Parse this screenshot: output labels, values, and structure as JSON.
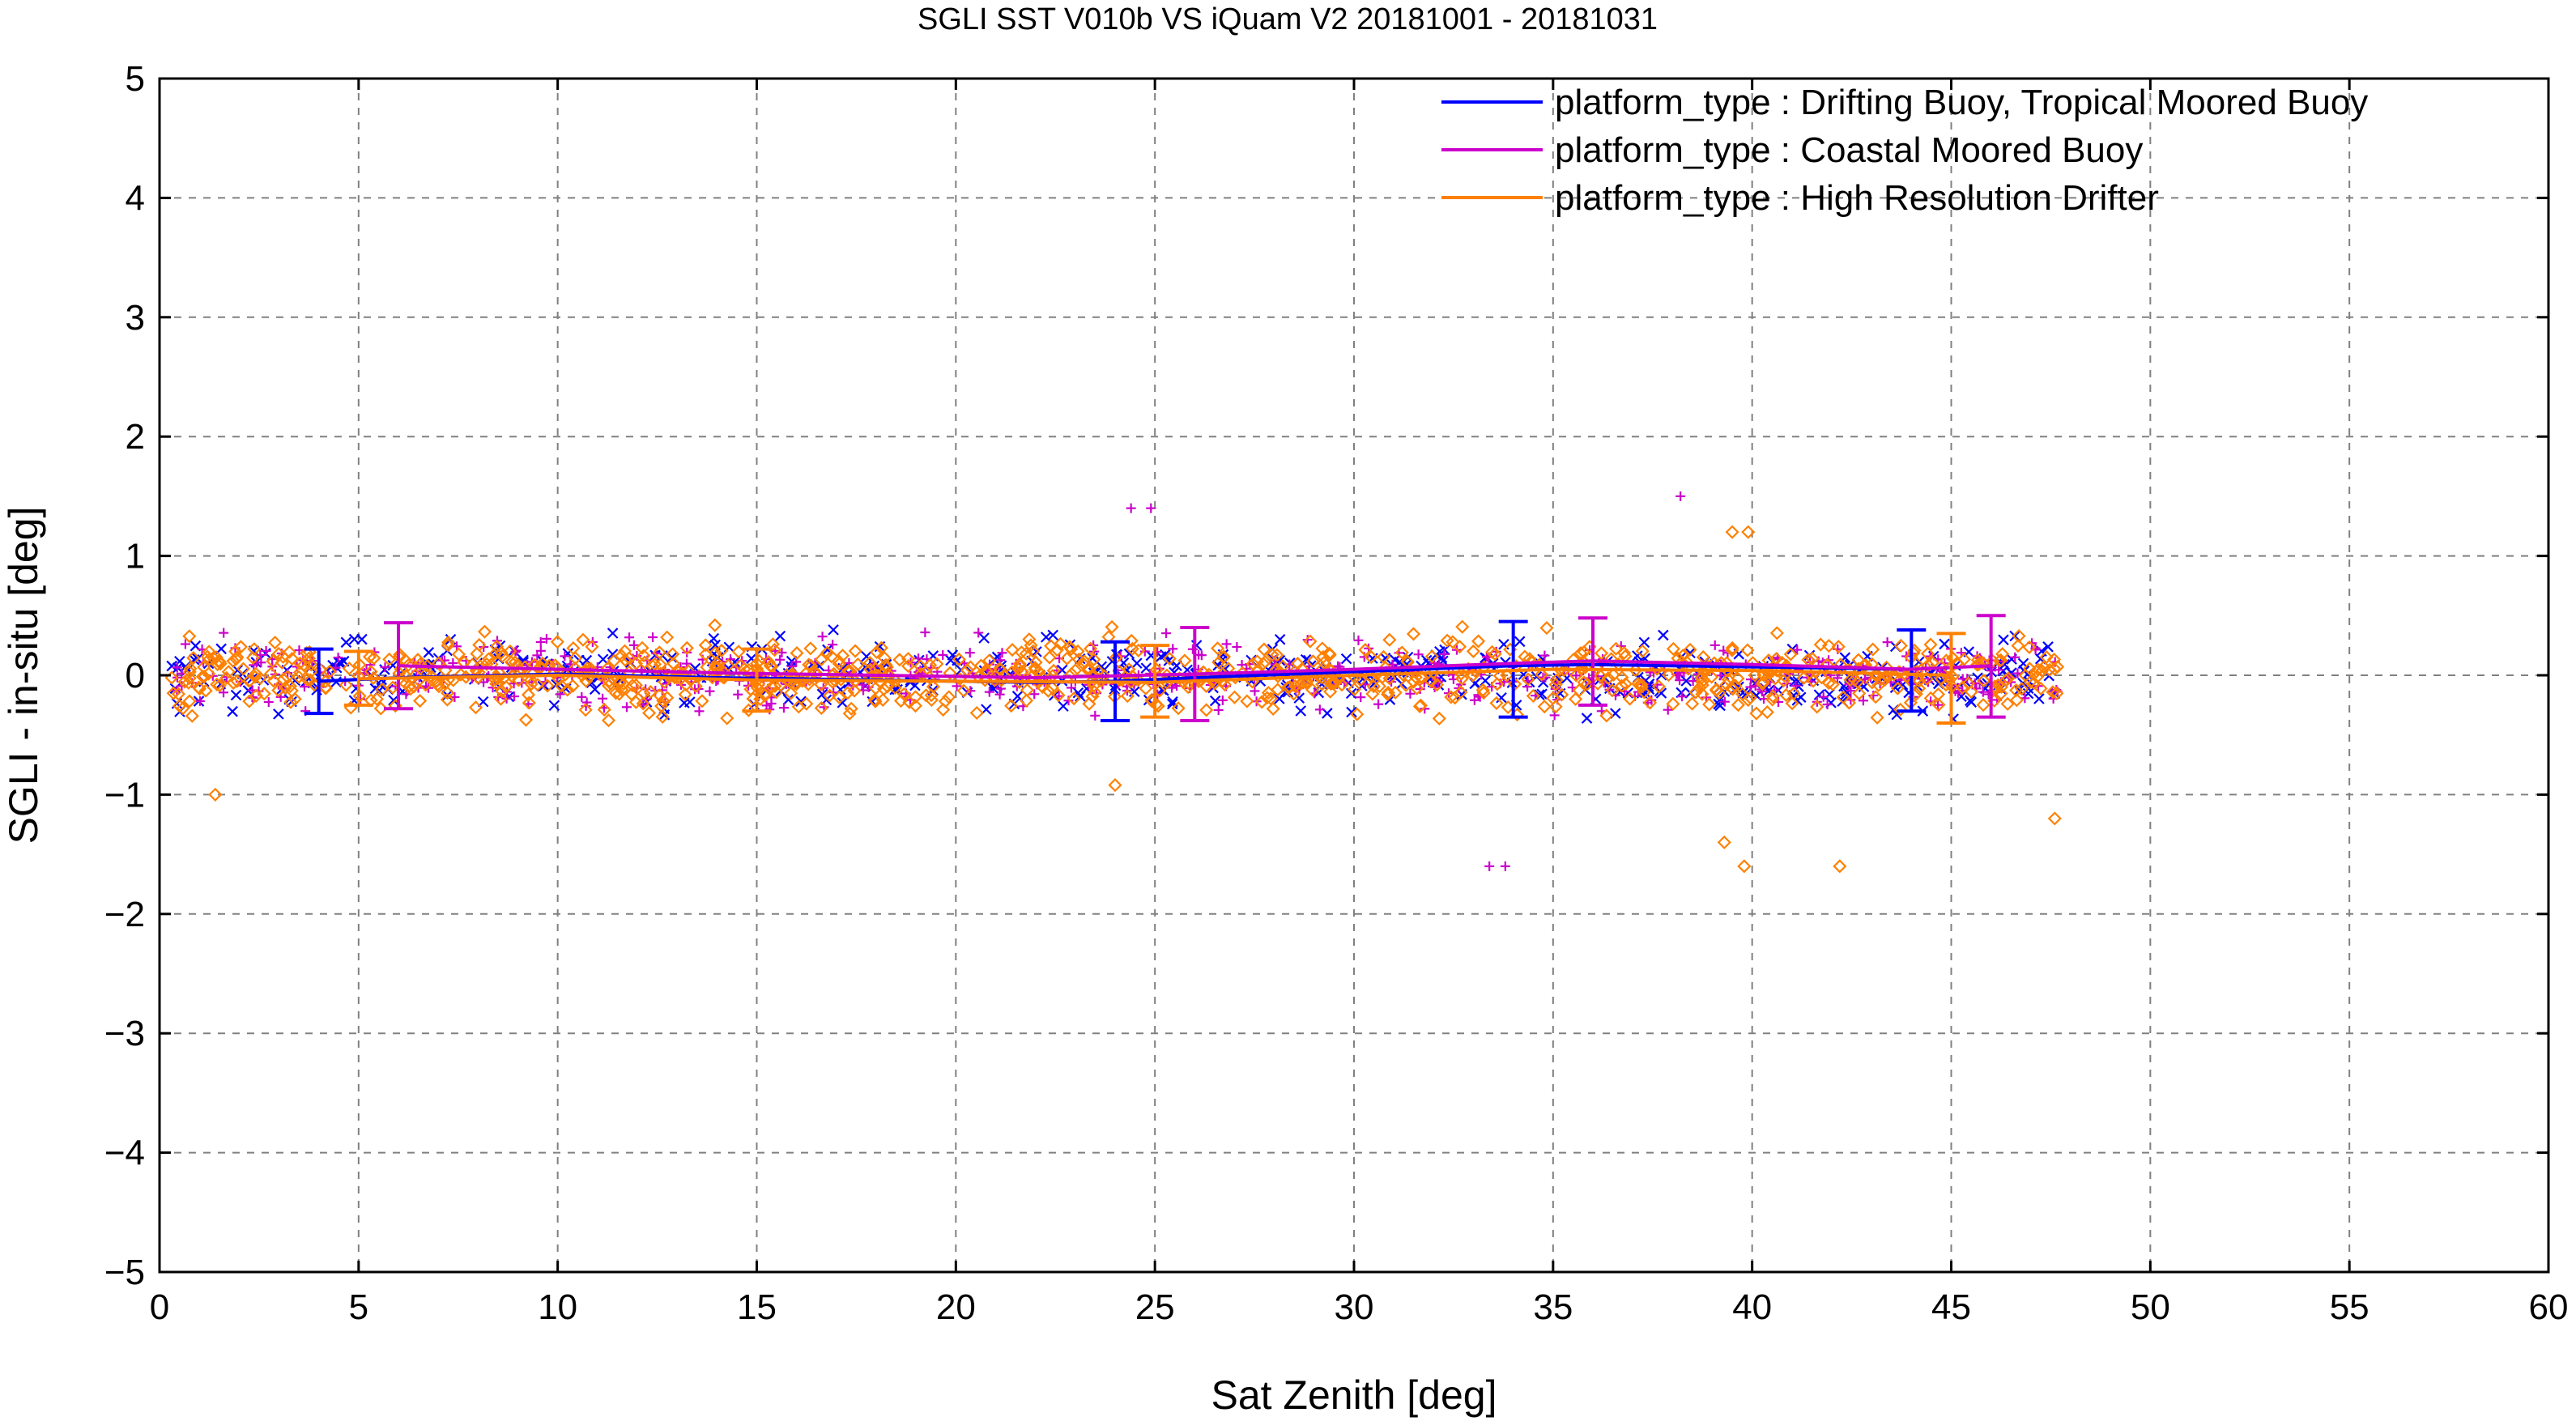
{
  "chart_data": {
    "type": "scatter",
    "title": "SGLI SST V010b VS iQuam V2 20181001 - 20181031",
    "xlabel": "Sat Zenith [deg]",
    "ylabel": "SGLI - in-situ [deg]",
    "xlim": [
      0,
      60
    ],
    "ylim": [
      -5,
      5
    ],
    "x_ticks": [
      "0",
      "5",
      "10",
      "15",
      "20",
      "25",
      "30",
      "35",
      "40",
      "45",
      "50",
      "55",
      "60"
    ],
    "y_ticks": [
      "5",
      "4",
      "3",
      "2",
      "1",
      "0",
      "−1",
      "−2",
      "−3",
      "−4",
      "−5"
    ],
    "grid": true,
    "legend_position": "top-right",
    "series": [
      {
        "name": "platform_type : Drifting Buoy, Tropical Moored Buoy",
        "color": "#0000ff",
        "marker": "x",
        "mean_line": {
          "x": [
            4,
            6,
            10,
            14,
            18,
            22,
            24,
            26,
            30,
            34,
            36,
            40,
            44
          ],
          "y": [
            -0.05,
            -0.02,
            0.01,
            -0.02,
            -0.04,
            -0.06,
            -0.05,
            -0.02,
            0.03,
            0.08,
            0.09,
            0.07,
            0.05
          ]
        },
        "error_bars": [
          {
            "x": 4,
            "y": -0.05,
            "low": -0.32,
            "high": 0.22
          },
          {
            "x": 24,
            "y": -0.05,
            "low": -0.38,
            "high": 0.28
          },
          {
            "x": 34,
            "y": 0.08,
            "low": -0.35,
            "high": 0.45
          },
          {
            "x": 44,
            "y": 0.05,
            "low": -0.3,
            "high": 0.38
          }
        ]
      },
      {
        "name": "platform_type : Coastal Moored Buoy",
        "color": "#cc00cc",
        "marker": "+",
        "mean_line": {
          "x": [
            6,
            10,
            14,
            18,
            22,
            26,
            30,
            34,
            36,
            40,
            44,
            46
          ],
          "y": [
            0.08,
            0.05,
            0.02,
            0.0,
            -0.02,
            0.01,
            0.05,
            0.1,
            0.12,
            0.09,
            0.05,
            0.08
          ]
        },
        "error_bars": [
          {
            "x": 6,
            "y": 0.08,
            "low": -0.28,
            "high": 0.44
          },
          {
            "x": 26,
            "y": 0.01,
            "low": -0.38,
            "high": 0.4
          },
          {
            "x": 36,
            "y": 0.12,
            "low": -0.25,
            "high": 0.48
          },
          {
            "x": 46,
            "y": 0.08,
            "low": -0.35,
            "high": 0.5
          }
        ]
      },
      {
        "name": "platform_type : High Resolution Drifter",
        "color": "#ff8000",
        "marker": "diamond",
        "mean_line": {
          "x": [
            5,
            10,
            15,
            20,
            25,
            30,
            35,
            40,
            45
          ],
          "y": [
            -0.03,
            0.0,
            -0.04,
            -0.05,
            -0.06,
            0.0,
            0.05,
            0.04,
            0.0
          ]
        },
        "error_bars": [
          {
            "x": 5,
            "y": -0.03,
            "low": -0.25,
            "high": 0.2
          },
          {
            "x": 15,
            "y": -0.04,
            "low": -0.3,
            "high": 0.22
          },
          {
            "x": 25,
            "y": -0.06,
            "low": -0.35,
            "high": 0.25
          },
          {
            "x": 45,
            "y": 0.0,
            "low": -0.4,
            "high": 0.35
          }
        ]
      }
    ],
    "scatter_note_free": true,
    "outliers": [
      {
        "series": 1,
        "x": 24.4,
        "y": 1.4
      },
      {
        "series": 1,
        "x": 24.9,
        "y": 1.4
      },
      {
        "series": 1,
        "x": 38.2,
        "y": 1.5
      },
      {
        "series": 2,
        "x": 39.5,
        "y": 1.2
      },
      {
        "series": 2,
        "x": 39.9,
        "y": 1.2
      },
      {
        "series": 1,
        "x": 33.4,
        "y": -1.6
      },
      {
        "series": 1,
        "x": 33.8,
        "y": -1.6
      },
      {
        "series": 2,
        "x": 39.3,
        "y": -1.4
      },
      {
        "series": 2,
        "x": 39.8,
        "y": -1.6
      },
      {
        "series": 2,
        "x": 42.2,
        "y": -1.6
      },
      {
        "series": 2,
        "x": 47.6,
        "y": -1.2
      },
      {
        "series": 2,
        "x": 1.4,
        "y": -1.0
      },
      {
        "series": 2,
        "x": 24.0,
        "y": -0.92
      }
    ]
  }
}
